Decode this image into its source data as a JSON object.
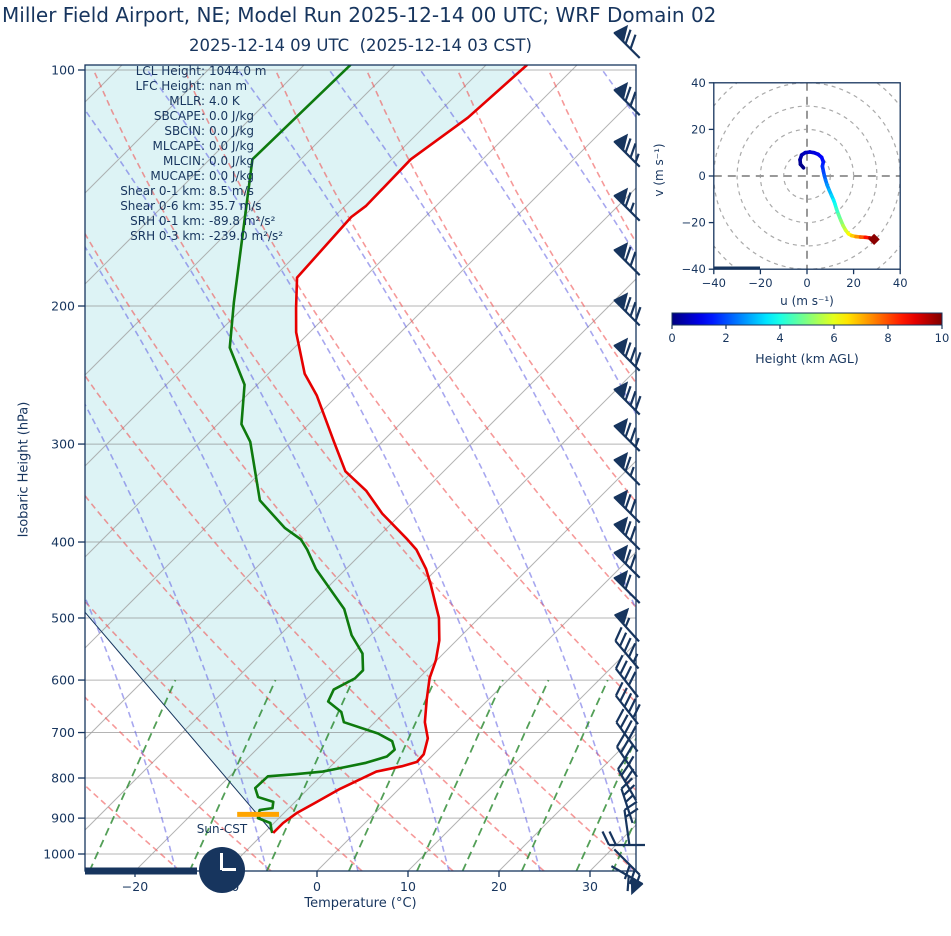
{
  "header": {
    "title": "Miller Field Airport, NE; Model Run 2025-12-14 00 UTC; WRF Domain 02",
    "subtitle": "2025-12-14 09 UTC  (2025-12-14 03 CST)"
  },
  "stats": [
    {
      "label": "LCL Height:",
      "value": "1044.0 m"
    },
    {
      "label": "LFC Height:",
      "value": "nan m"
    },
    {
      "label": "MLLR:",
      "value": "4.0 K"
    },
    {
      "label": "SBCAPE:",
      "value": "0.0 J/kg"
    },
    {
      "label": "SBCIN:",
      "value": "0.0 J/kg"
    },
    {
      "label": "MLCAPE:",
      "value": "0.0 J/kg"
    },
    {
      "label": "MLCIN:",
      "value": "0.0 J/kg"
    },
    {
      "label": "MUCAPE:",
      "value": "0.0 J/kg"
    },
    {
      "label": "Shear 0-1 km:",
      "value": "8.5 m/s"
    },
    {
      "label": "Shear 0-6 km:",
      "value": "35.7 m/s"
    },
    {
      "label": "SRH 0-1 km:",
      "value": "-89.8 m²/s²"
    },
    {
      "label": "SRH 0-3 km:",
      "value": "-239.0 m²/s²"
    }
  ],
  "skewt": {
    "ylabel": "Isobaric Height (hPa)",
    "xlabel": "Temperature (°C)",
    "sun_label": "Sun-CST",
    "x_tick_labels": [
      "−20",
      "−10",
      "0",
      "10",
      "20",
      "30"
    ],
    "x_tick_values": [
      -20,
      -10,
      0,
      10,
      20,
      30
    ],
    "y_ticks": [
      100,
      200,
      300,
      400,
      500,
      600,
      700,
      800,
      900,
      1000
    ]
  },
  "hodograph": {
    "xlabel": "u (m s⁻¹)",
    "ylabel": "v (m s⁻¹)",
    "tick_labels": [
      "−40",
      "−20",
      "0",
      "20",
      "40"
    ],
    "tick_values": [
      -40,
      -20,
      0,
      20,
      40
    ]
  },
  "colorbar": {
    "label": "Height (km AGL)",
    "tick_labels": [
      "0",
      "2",
      "4",
      "6",
      "8",
      "10"
    ],
    "tick_values": [
      0,
      2,
      4,
      6,
      8,
      10
    ]
  },
  "colors": {
    "navy": "#17355e",
    "temperature": "#e60000",
    "dewpoint": "#0e7a0e",
    "cin_fill": "#ddf3f5",
    "dry_adiabat": "rgba(240,85,85,0.6)",
    "moist_adiabat": "rgba(95,95,225,0.55)",
    "mixing_ratio": "rgba(40,135,45,0.8)",
    "isotherm": "rgba(160,160,160,0.8)",
    "gridline": "rgba(130,130,130,0.6)",
    "lcl_marker": "#ffa500",
    "hodo_end_marker": "#8b0000"
  },
  "chart_data": [
    {
      "type": "line",
      "name": "skew-t-log-p-sounding",
      "x_axis": {
        "label": "Temperature (°C)",
        "range": [
          -25.5,
          35
        ],
        "ticks": [
          -20,
          -10,
          0,
          10,
          20,
          30
        ],
        "skew_deg": 45
      },
      "y_axis": {
        "label": "Isobaric Height (hPa)",
        "scale": "log",
        "range": [
          1051,
          98.5
        ],
        "ticks": [
          100,
          200,
          300,
          400,
          500,
          600,
          700,
          800,
          900,
          1000
        ]
      },
      "background": {
        "isotherm_step_c": 10,
        "dry_adiabats": "red-dashed",
        "moist_adiabats": "blue-dashed",
        "mixing_ratio_lines": "green-dashed-below-600hPa",
        "cin_shading": "lightcyan"
      },
      "series": [
        {
          "name": "temperature",
          "units": [
            "hPa",
            "°C"
          ],
          "points": [
            [
              98.5,
              -65.5
            ],
            [
              115,
              -66.2
            ],
            [
              130,
              -67.9
            ],
            [
              149,
              -67.7
            ],
            [
              154,
              -68.1
            ],
            [
              184,
              -67.4
            ],
            [
              201,
              -64.2
            ],
            [
              216,
              -61.5
            ],
            [
              244,
              -56.0
            ],
            [
              260,
              -52.3
            ],
            [
              298,
              -45.3
            ],
            [
              325,
              -40.8
            ],
            [
              344,
              -36.4
            ],
            [
              368,
              -32.1
            ],
            [
              397,
              -26.5
            ],
            [
              409,
              -24.4
            ],
            [
              433,
              -21.2
            ],
            [
              454,
              -18.9
            ],
            [
              500,
              -14.4
            ],
            [
              534,
              -11.9
            ],
            [
              566,
              -10.1
            ],
            [
              597,
              -8.8
            ],
            [
              635,
              -6.8
            ],
            [
              679,
              -4.5
            ],
            [
              712,
              -2.4
            ],
            [
              746,
              -1.1
            ],
            [
              763,
              -1.0
            ],
            [
              773,
              -2.2
            ],
            [
              785,
              -4.4
            ],
            [
              826,
              -6.5
            ],
            [
              861,
              -7.7
            ],
            [
              887,
              -8.6
            ],
            [
              913,
              -9.0
            ],
            [
              940,
              -9.0
            ]
          ]
        },
        {
          "name": "dewpoint",
          "units": [
            "hPa",
            "°C"
          ],
          "points": [
            [
              98.5,
              -84.9
            ],
            [
              130,
              -85.3
            ],
            [
              198,
              -71.6
            ],
            [
              226,
              -67.1
            ],
            [
              252,
              -61.4
            ],
            [
              283,
              -57.4
            ],
            [
              298,
              -54.5
            ],
            [
              354,
              -47.0
            ],
            [
              384,
              -41.2
            ],
            [
              397,
              -38.2
            ],
            [
              409,
              -36.4
            ],
            [
              433,
              -33.3
            ],
            [
              487,
              -25.8
            ],
            [
              526,
              -22.1
            ],
            [
              555,
              -18.9
            ],
            [
              583,
              -17.0
            ],
            [
              597,
              -17.0
            ],
            [
              617,
              -18.1
            ],
            [
              639,
              -17.4
            ],
            [
              659,
              -14.8
            ],
            [
              679,
              -13.4
            ],
            [
              702,
              -8.4
            ],
            [
              718,
              -6.0
            ],
            [
              736,
              -4.8
            ],
            [
              751,
              -4.9
            ],
            [
              765,
              -6.5
            ],
            [
              775,
              -8.4
            ],
            [
              785,
              -10.3
            ],
            [
              791,
              -13.0
            ],
            [
              796,
              -15.8
            ],
            [
              824,
              -15.9
            ],
            [
              846,
              -14.6
            ],
            [
              858,
              -12.4
            ],
            [
              874,
              -11.8
            ],
            [
              879,
              -13.0
            ],
            [
              900,
              -12.3
            ],
            [
              913,
              -10.4
            ],
            [
              932,
              -9.5
            ],
            [
              940,
              -9.1
            ]
          ]
        },
        {
          "name": "parcel_profile",
          "units": [
            "hPa",
            "°C"
          ],
          "points": [
            [
              489,
              -54.3
            ],
            [
              940,
              -9.0
            ]
          ]
        }
      ],
      "lcl_marker": {
        "p": 890,
        "t_from": -15.0,
        "t_to": -10.4
      },
      "wind_barbs": [
        {
          "p": 93,
          "angle": 225,
          "flags": 1,
          "full": 2,
          "half": 0
        },
        {
          "p": 110,
          "angle": 225,
          "flags": 1,
          "full": 2,
          "half": 0
        },
        {
          "p": 128,
          "angle": 225,
          "flags": 1,
          "full": 2,
          "half": 1
        },
        {
          "p": 150,
          "angle": 225,
          "flags": 1,
          "full": 1,
          "half": 1
        },
        {
          "p": 176,
          "angle": 225,
          "flags": 1,
          "full": 2,
          "half": 0
        },
        {
          "p": 204,
          "angle": 225,
          "flags": 1,
          "full": 3,
          "half": 0
        },
        {
          "p": 233,
          "angle": 225,
          "flags": 1,
          "full": 3,
          "half": 0
        },
        {
          "p": 265,
          "angle": 225,
          "flags": 1,
          "full": 3,
          "half": 0
        },
        {
          "p": 295,
          "angle": 225,
          "flags": 1,
          "full": 2,
          "half": 1
        },
        {
          "p": 326,
          "angle": 225,
          "flags": 1,
          "full": 1,
          "half": 1
        },
        {
          "p": 364,
          "angle": 225,
          "flags": 1,
          "full": 2,
          "half": 0
        },
        {
          "p": 394,
          "angle": 225,
          "flags": 1,
          "full": 2,
          "half": 0
        },
        {
          "p": 428,
          "angle": 225,
          "flags": 1,
          "full": 2,
          "half": 0
        },
        {
          "p": 461,
          "angle": 225,
          "flags": 1,
          "full": 1,
          "half": 0
        },
        {
          "p": 515,
          "angle": 228,
          "flags": 1,
          "full": 0,
          "half": 1
        },
        {
          "p": 557,
          "angle": 230,
          "flags": 0,
          "full": 4,
          "half": 1
        },
        {
          "p": 605,
          "angle": 232,
          "flags": 0,
          "full": 4,
          "half": 0
        },
        {
          "p": 655,
          "angle": 232,
          "flags": 0,
          "full": 5,
          "half": 0
        },
        {
          "p": 709,
          "angle": 234,
          "flags": 0,
          "full": 4,
          "half": 0
        },
        {
          "p": 763,
          "angle": 236,
          "flags": 0,
          "full": 3,
          "half": 1
        },
        {
          "p": 816,
          "angle": 240,
          "flags": 0,
          "full": 3,
          "half": 0
        },
        {
          "p": 868,
          "angle": 252,
          "flags": 0,
          "full": 2,
          "half": 1
        },
        {
          "p": 926,
          "angle": 262,
          "flags": 0,
          "full": 2,
          "half": 0
        },
        {
          "p": 974,
          "angle": 180,
          "flags": 0,
          "full": 2,
          "half": 0
        },
        {
          "p": 1024,
          "angle": 45,
          "flags": 0,
          "full": 3,
          "half": 0
        },
        {
          "p": 1064,
          "angle": 30,
          "flags": 1,
          "full": 1,
          "half": 0
        }
      ]
    },
    {
      "type": "line",
      "name": "hodograph",
      "x_axis": {
        "label": "u (m s⁻¹)",
        "range": [
          -40,
          40
        ],
        "ticks": [
          -40,
          -20,
          0,
          20,
          40
        ]
      },
      "y_axis": {
        "label": "v (m s⁻¹)",
        "range": [
          -40,
          40
        ],
        "ticks": [
          -40,
          -20,
          0,
          20,
          40
        ]
      },
      "rings_ms": [
        10,
        20,
        30,
        40,
        50,
        60
      ],
      "colormap": {
        "name": "jet",
        "label": "Height (km AGL)",
        "range_km": [
          0,
          10
        ],
        "ticks": [
          0,
          2,
          4,
          6,
          8,
          10
        ]
      },
      "points_uvh": [
        [
          -1.5,
          3.5,
          0
        ],
        [
          -2.8,
          5,
          0.1
        ],
        [
          -3,
          7,
          0.25
        ],
        [
          -2.3,
          9,
          0.4
        ],
        [
          -0.8,
          10,
          0.55
        ],
        [
          1.2,
          10.3,
          0.7
        ],
        [
          3,
          10,
          0.85
        ],
        [
          4.8,
          9.3,
          1.0
        ],
        [
          6.3,
          8,
          1.2
        ],
        [
          7,
          6,
          1.4
        ],
        [
          6.6,
          4.2,
          1.6
        ],
        [
          7,
          2.2,
          1.8
        ],
        [
          7.4,
          0.3,
          2.0
        ],
        [
          8,
          -1.8,
          2.3
        ],
        [
          8.6,
          -3.8,
          2.6
        ],
        [
          9.5,
          -6,
          2.9
        ],
        [
          10.5,
          -8.3,
          3.2
        ],
        [
          11.4,
          -10.3,
          3.5
        ],
        [
          12,
          -12,
          3.8
        ],
        [
          12.6,
          -14,
          4.1
        ],
        [
          13.5,
          -16.5,
          4.5
        ],
        [
          14.5,
          -19,
          4.9
        ],
        [
          15.5,
          -21.3,
          5.3
        ],
        [
          16.6,
          -23.3,
          5.7
        ],
        [
          17.8,
          -24.8,
          6.1
        ],
        [
          19.2,
          -25.6,
          6.5
        ],
        [
          21,
          -26,
          7.0
        ],
        [
          23,
          -26.2,
          7.6
        ],
        [
          25,
          -26.3,
          8.2
        ],
        [
          27,
          -26.6,
          9.0
        ],
        [
          28.8,
          -27,
          10
        ]
      ],
      "end_marker": {
        "u": 28.8,
        "v": -27.2
      }
    }
  ]
}
